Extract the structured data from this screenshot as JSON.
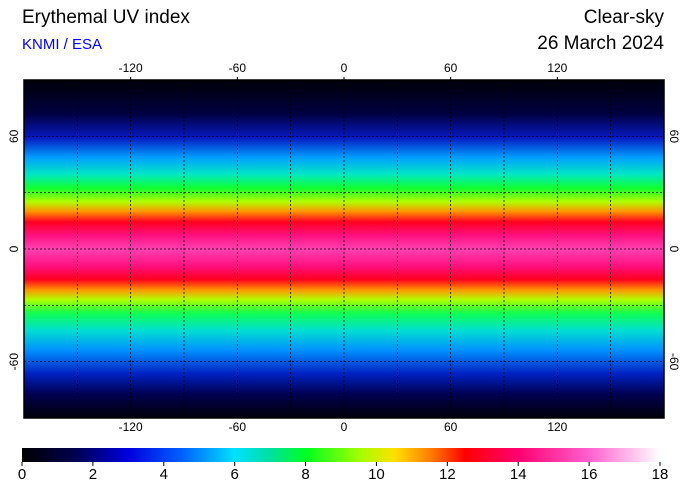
{
  "header": {
    "title": "Erythemal UV index",
    "source": "KNMI / ESA",
    "condition": "Clear-sky",
    "date": "26 March 2024"
  },
  "map": {
    "xlim": [
      -180,
      180
    ],
    "ylim": [
      -90,
      90
    ],
    "lon_ticks": [
      -120,
      -60,
      0,
      60,
      120
    ],
    "lat_ticks": [
      60,
      0,
      -60
    ],
    "grid_lons": [
      -150,
      -120,
      -90,
      -60,
      -30,
      0,
      30,
      60,
      90,
      120,
      150
    ],
    "grid_lats": [
      60,
      30,
      0,
      -30,
      -60
    ]
  },
  "colorbar": {
    "lim": [
      0,
      18
    ],
    "ticks": [
      0,
      2,
      4,
      6,
      8,
      10,
      12,
      14,
      16,
      18
    ],
    "colormap": [
      {
        "value": 0,
        "color": "#000000"
      },
      {
        "value": 1.5,
        "color": "#000050"
      },
      {
        "value": 3,
        "color": "#0000e0"
      },
      {
        "value": 4.5,
        "color": "#0060ff"
      },
      {
        "value": 6,
        "color": "#00e0ff"
      },
      {
        "value": 7,
        "color": "#00e0a0"
      },
      {
        "value": 8,
        "color": "#00ff20"
      },
      {
        "value": 9.5,
        "color": "#a0ff00"
      },
      {
        "value": 10.5,
        "color": "#ffe000"
      },
      {
        "value": 11.5,
        "color": "#ff8000"
      },
      {
        "value": 12.5,
        "color": "#ff0000"
      },
      {
        "value": 14,
        "color": "#ff0070"
      },
      {
        "value": 16,
        "color": "#ff60d0"
      },
      {
        "value": 18,
        "color": "#ffffff"
      }
    ]
  }
}
